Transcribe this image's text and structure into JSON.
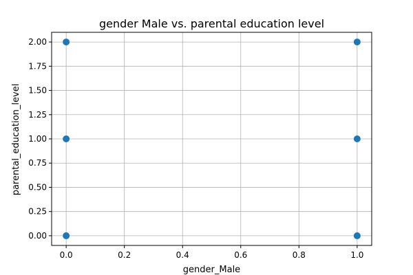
{
  "chart_data": {
    "type": "scatter",
    "title": "gender Male vs. parental education level",
    "xlabel": "gender_Male",
    "ylabel": "parental_education_level",
    "xlim": [
      -0.05,
      1.05
    ],
    "ylim": [
      -0.1,
      2.1
    ],
    "xticks": [
      0.0,
      0.2,
      0.4,
      0.6,
      0.8,
      1.0
    ],
    "xtick_labels": [
      "0.0",
      "0.2",
      "0.4",
      "0.6",
      "0.8",
      "1.0"
    ],
    "yticks": [
      0.0,
      0.25,
      0.5,
      0.75,
      1.0,
      1.25,
      1.5,
      1.75,
      2.0
    ],
    "ytick_labels": [
      "0.00",
      "0.25",
      "0.50",
      "0.75",
      "1.00",
      "1.25",
      "1.50",
      "1.75",
      "2.00"
    ],
    "grid": true,
    "color": "#1f77b4",
    "points": [
      {
        "x": 0,
        "y": 0
      },
      {
        "x": 0,
        "y": 1
      },
      {
        "x": 0,
        "y": 2
      },
      {
        "x": 1,
        "y": 0
      },
      {
        "x": 1,
        "y": 1
      },
      {
        "x": 1,
        "y": 2
      }
    ]
  }
}
